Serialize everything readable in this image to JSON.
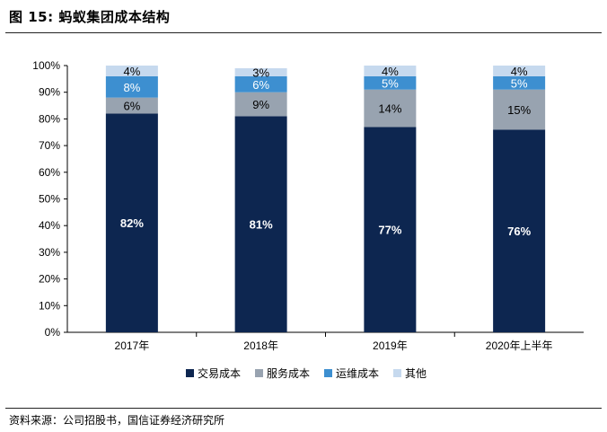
{
  "header": {
    "title": "图 15:  蚂蚁集团成本结构"
  },
  "footer": {
    "source": "资料来源：公司招股书，国信证券经济研究所"
  },
  "chart_data": {
    "type": "bar",
    "stacked": true,
    "categories": [
      "2017年",
      "2018年",
      "2019年",
      "2020年上半年"
    ],
    "series": [
      {
        "name": "交易成本",
        "values": [
          82,
          81,
          77,
          76
        ],
        "labels": [
          "82%",
          "81%",
          "77%",
          "76%"
        ],
        "color": "#0d2650",
        "label_color": "#ffffff"
      },
      {
        "name": "服务成本",
        "values": [
          6,
          9,
          14,
          15
        ],
        "labels": [
          "6%",
          "9%",
          "14%",
          "15%"
        ],
        "color": "#98a3b0",
        "label_color": "#000000"
      },
      {
        "name": "运维成本",
        "values": [
          8,
          6,
          5,
          5
        ],
        "labels": [
          "8%",
          "6%",
          "5%",
          "5%"
        ],
        "color": "#3d8fd0",
        "label_color": "#ffffff"
      },
      {
        "name": "其他",
        "values": [
          4,
          3,
          4,
          4
        ],
        "labels": [
          "4%",
          "3%",
          "4%",
          "4%"
        ],
        "color": "#c6d9ee",
        "label_color": "#000000"
      }
    ],
    "yticks": [
      "0%",
      "10%",
      "20%",
      "30%",
      "40%",
      "50%",
      "60%",
      "70%",
      "80%",
      "90%",
      "100%"
    ],
    "ylim": [
      0,
      100
    ],
    "legend_position": "bottom",
    "grid": false
  }
}
